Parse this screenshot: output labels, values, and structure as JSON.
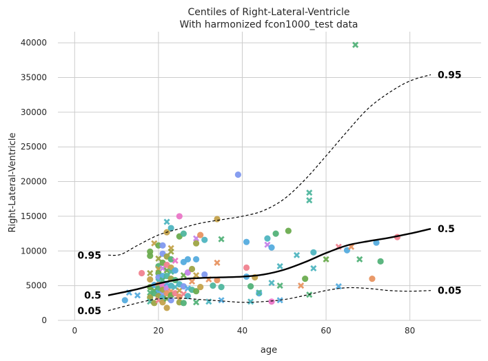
{
  "chart_data": {
    "type": "scatter",
    "title": "Centiles of Right-Lateral-Ventricle",
    "subtitle": "With harmonized fcon1000_test data",
    "xlabel": "age",
    "ylabel": "Right-Lateral-Ventricle",
    "xlim": [
      -4,
      97
    ],
    "ylim": [
      0,
      41600
    ],
    "xticks": [
      0,
      20,
      40,
      60,
      80
    ],
    "yticks": [
      0,
      5000,
      10000,
      15000,
      20000,
      25000,
      30000,
      35000,
      40000
    ],
    "grid": true,
    "centiles": [
      {
        "name": "0.95",
        "style": "dashed",
        "label_left": "0.95",
        "label_right": "0.95",
        "x": [
          8,
          11,
          15,
          20,
          25,
          30,
          35,
          40,
          45,
          50,
          55,
          60,
          65,
          70,
          75,
          80,
          85
        ],
        "y": [
          9400,
          9500,
          10800,
          12300,
          13200,
          14000,
          14500,
          15000,
          15800,
          17500,
          20300,
          23700,
          27200,
          30500,
          32800,
          34500,
          35400
        ]
      },
      {
        "name": "0.5",
        "style": "solid",
        "label_left": "0.5",
        "label_right": "0.5",
        "x": [
          8,
          15,
          20,
          25,
          30,
          35,
          40,
          45,
          50,
          55,
          60,
          65,
          70,
          75,
          80,
          85
        ],
        "y": [
          3600,
          4500,
          5300,
          5900,
          6100,
          6200,
          6300,
          6600,
          7300,
          8400,
          9700,
          10800,
          11400,
          11900,
          12500,
          13200
        ]
      },
      {
        "name": "0.05",
        "style": "dashed",
        "label_left": "0.05",
        "label_right": "0.05",
        "x": [
          8,
          15,
          20,
          25,
          30,
          35,
          40,
          45,
          50,
          55,
          60,
          65,
          70,
          75,
          80,
          85
        ],
        "y": [
          1400,
          2500,
          3100,
          3200,
          3000,
          2800,
          2600,
          2700,
          3000,
          3600,
          4300,
          4700,
          4600,
          4300,
          4200,
          4300
        ]
      }
    ],
    "marker_colors": [
      "#f0828f",
      "#e89361",
      "#c4a24b",
      "#9ea444",
      "#6cac4f",
      "#53b279",
      "#4fb69e",
      "#4fb5c0",
      "#55acde",
      "#8199ef",
      "#c583e9",
      "#ea76c7"
    ],
    "points": [
      {
        "x": 12,
        "y": 2900,
        "m": "o",
        "c": 8
      },
      {
        "x": 13,
        "y": 4000,
        "m": "x",
        "c": 8
      },
      {
        "x": 15,
        "y": 3600,
        "m": "x",
        "c": 8
      },
      {
        "x": 16,
        "y": 6800,
        "m": "o",
        "c": 0
      },
      {
        "x": 18,
        "y": 9300,
        "m": "o",
        "c": 4
      },
      {
        "x": 18,
        "y": 9900,
        "m": "o",
        "c": 4
      },
      {
        "x": 18,
        "y": 6800,
        "m": "x",
        "c": 3
      },
      {
        "x": 18,
        "y": 5900,
        "m": "o",
        "c": 2
      },
      {
        "x": 18,
        "y": 4800,
        "m": "o",
        "c": 4
      },
      {
        "x": 18,
        "y": 4000,
        "m": "x",
        "c": 5
      },
      {
        "x": 18,
        "y": 3300,
        "m": "o",
        "c": 3
      },
      {
        "x": 18,
        "y": 2700,
        "m": "x",
        "c": 6
      },
      {
        "x": 19,
        "y": 11100,
        "m": "x",
        "c": 2
      },
      {
        "x": 19,
        "y": 5100,
        "m": "o",
        "c": 8
      },
      {
        "x": 19,
        "y": 4300,
        "m": "x",
        "c": 4
      },
      {
        "x": 19,
        "y": 3900,
        "m": "o",
        "c": 5
      },
      {
        "x": 19,
        "y": 2500,
        "m": "o",
        "c": 3
      },
      {
        "x": 20,
        "y": 10800,
        "m": "o",
        "c": 4
      },
      {
        "x": 20,
        "y": 8900,
        "m": "x",
        "c": 3
      },
      {
        "x": 20,
        "y": 7800,
        "m": "o",
        "c": 5
      },
      {
        "x": 20,
        "y": 7400,
        "m": "x",
        "c": 2
      },
      {
        "x": 20,
        "y": 6800,
        "m": "o",
        "c": 4
      },
      {
        "x": 20,
        "y": 6200,
        "m": "o",
        "c": 9
      },
      {
        "x": 20,
        "y": 5600,
        "m": "x",
        "c": 7
      },
      {
        "x": 20,
        "y": 5100,
        "m": "o",
        "c": 1
      },
      {
        "x": 20,
        "y": 4600,
        "m": "o",
        "c": 5
      },
      {
        "x": 20,
        "y": 4000,
        "m": "x",
        "c": 8
      },
      {
        "x": 20,
        "y": 3500,
        "m": "o",
        "c": 3
      },
      {
        "x": 20,
        "y": 2900,
        "m": "x",
        "c": 0
      },
      {
        "x": 21,
        "y": 10800,
        "m": "o",
        "c": 9
      },
      {
        "x": 21,
        "y": 9600,
        "m": "o",
        "c": 9
      },
      {
        "x": 21,
        "y": 8300,
        "m": "o",
        "c": 4
      },
      {
        "x": 21,
        "y": 7500,
        "m": "x",
        "c": 10
      },
      {
        "x": 21,
        "y": 6400,
        "m": "o",
        "c": 8
      },
      {
        "x": 21,
        "y": 5800,
        "m": "x",
        "c": 5
      },
      {
        "x": 21,
        "y": 5000,
        "m": "o",
        "c": 11
      },
      {
        "x": 21,
        "y": 4400,
        "m": "o",
        "c": 3
      },
      {
        "x": 21,
        "y": 3700,
        "m": "x",
        "c": 9
      },
      {
        "x": 21,
        "y": 3200,
        "m": "o",
        "c": 7
      },
      {
        "x": 21,
        "y": 2600,
        "m": "o",
        "c": 2
      },
      {
        "x": 22,
        "y": 14200,
        "m": "x",
        "c": 7
      },
      {
        "x": 22,
        "y": 12700,
        "m": "o",
        "c": 2
      },
      {
        "x": 22,
        "y": 9200,
        "m": "o",
        "c": 3
      },
      {
        "x": 22,
        "y": 8000,
        "m": "o",
        "c": 0
      },
      {
        "x": 22,
        "y": 7200,
        "m": "x",
        "c": 4
      },
      {
        "x": 22,
        "y": 6400,
        "m": "o",
        "c": 6
      },
      {
        "x": 22,
        "y": 5300,
        "m": "x",
        "c": 8
      },
      {
        "x": 22,
        "y": 4600,
        "m": "o",
        "c": 10
      },
      {
        "x": 22,
        "y": 3900,
        "m": "o",
        "c": 1
      },
      {
        "x": 22,
        "y": 3100,
        "m": "x",
        "c": 4
      },
      {
        "x": 22,
        "y": 1800,
        "m": "o",
        "c": 2
      },
      {
        "x": 23,
        "y": 13300,
        "m": "o",
        "c": 7
      },
      {
        "x": 23,
        "y": 10400,
        "m": "x",
        "c": 2
      },
      {
        "x": 23,
        "y": 9900,
        "m": "x",
        "c": 3
      },
      {
        "x": 23,
        "y": 8800,
        "m": "o",
        "c": 5
      },
      {
        "x": 23,
        "y": 7600,
        "m": "o",
        "c": 2
      },
      {
        "x": 23,
        "y": 7000,
        "m": "x",
        "c": 6
      },
      {
        "x": 23,
        "y": 6000,
        "m": "o",
        "c": 3
      },
      {
        "x": 23,
        "y": 5000,
        "m": "o",
        "c": 7
      },
      {
        "x": 23,
        "y": 4200,
        "m": "x",
        "c": 1
      },
      {
        "x": 23,
        "y": 3600,
        "m": "o",
        "c": 4
      },
      {
        "x": 23,
        "y": 2900,
        "m": "o",
        "c": 9
      },
      {
        "x": 24,
        "y": 8600,
        "m": "x",
        "c": 11
      },
      {
        "x": 24,
        "y": 7200,
        "m": "o",
        "c": 8
      },
      {
        "x": 24,
        "y": 5800,
        "m": "o",
        "c": 5
      },
      {
        "x": 24,
        "y": 4800,
        "m": "x",
        "c": 7
      },
      {
        "x": 24,
        "y": 3900,
        "m": "o",
        "c": 0
      },
      {
        "x": 25,
        "y": 15000,
        "m": "o",
        "c": 11
      },
      {
        "x": 25,
        "y": 12100,
        "m": "o",
        "c": 4
      },
      {
        "x": 25,
        "y": 5200,
        "m": "o",
        "c": 7
      },
      {
        "x": 25,
        "y": 4300,
        "m": "x",
        "c": 2
      },
      {
        "x": 25,
        "y": 3400,
        "m": "o",
        "c": 1
      },
      {
        "x": 25,
        "y": 2600,
        "m": "o",
        "c": 3
      },
      {
        "x": 26,
        "y": 12500,
        "m": "o",
        "c": 6
      },
      {
        "x": 26,
        "y": 8400,
        "m": "o",
        "c": 8
      },
      {
        "x": 26,
        "y": 6500,
        "m": "x",
        "c": 4
      },
      {
        "x": 26,
        "y": 4900,
        "m": "o",
        "c": 9
      },
      {
        "x": 26,
        "y": 3800,
        "m": "x",
        "c": 0
      },
      {
        "x": 26,
        "y": 2500,
        "m": "o",
        "c": 5
      },
      {
        "x": 27,
        "y": 8800,
        "m": "o",
        "c": 8
      },
      {
        "x": 27,
        "y": 6900,
        "m": "o",
        "c": 10
      },
      {
        "x": 27,
        "y": 4600,
        "m": "x",
        "c": 8
      },
      {
        "x": 27,
        "y": 3500,
        "m": "o",
        "c": 7
      },
      {
        "x": 28,
        "y": 7400,
        "m": "o",
        "c": 3
      },
      {
        "x": 28,
        "y": 5600,
        "m": "x",
        "c": 1
      },
      {
        "x": 28,
        "y": 4400,
        "m": "o",
        "c": 6
      },
      {
        "x": 29,
        "y": 11800,
        "m": "x",
        "c": 10
      },
      {
        "x": 29,
        "y": 11100,
        "m": "o",
        "c": 3
      },
      {
        "x": 29,
        "y": 8800,
        "m": "o",
        "c": 8
      },
      {
        "x": 29,
        "y": 6500,
        "m": "x",
        "c": 2
      },
      {
        "x": 29,
        "y": 4200,
        "m": "o",
        "c": 4
      },
      {
        "x": 29,
        "y": 2600,
        "m": "x",
        "c": 5
      },
      {
        "x": 30,
        "y": 12300,
        "m": "o",
        "c": 1
      },
      {
        "x": 30,
        "y": 4800,
        "m": "o",
        "c": 2
      },
      {
        "x": 31,
        "y": 11600,
        "m": "o",
        "c": 7
      },
      {
        "x": 31,
        "y": 6600,
        "m": "o",
        "c": 9
      },
      {
        "x": 32,
        "y": 5900,
        "m": "x",
        "c": 1
      },
      {
        "x": 32,
        "y": 2700,
        "m": "x",
        "c": 7
      },
      {
        "x": 33,
        "y": 5000,
        "m": "o",
        "c": 6
      },
      {
        "x": 34,
        "y": 14600,
        "m": "o",
        "c": 2
      },
      {
        "x": 34,
        "y": 8300,
        "m": "x",
        "c": 1
      },
      {
        "x": 34,
        "y": 5800,
        "m": "o",
        "c": 1
      },
      {
        "x": 35,
        "y": 11700,
        "m": "x",
        "c": 5
      },
      {
        "x": 35,
        "y": 4800,
        "m": "o",
        "c": 6
      },
      {
        "x": 35,
        "y": 2900,
        "m": "x",
        "c": 8
      },
      {
        "x": 39,
        "y": 21000,
        "m": "o",
        "c": 9
      },
      {
        "x": 41,
        "y": 11300,
        "m": "o",
        "c": 8
      },
      {
        "x": 41,
        "y": 7600,
        "m": "o",
        "c": 0
      },
      {
        "x": 41,
        "y": 6300,
        "m": "o",
        "c": 8
      },
      {
        "x": 42,
        "y": 4900,
        "m": "o",
        "c": 5
      },
      {
        "x": 42,
        "y": 2700,
        "m": "x",
        "c": 7
      },
      {
        "x": 43,
        "y": 6200,
        "m": "o",
        "c": 2
      },
      {
        "x": 44,
        "y": 3900,
        "m": "o",
        "c": 8
      },
      {
        "x": 44,
        "y": 4000,
        "m": "x",
        "c": 6
      },
      {
        "x": 46,
        "y": 11800,
        "m": "o",
        "c": 7
      },
      {
        "x": 46,
        "y": 10900,
        "m": "x",
        "c": 10
      },
      {
        "x": 47,
        "y": 10500,
        "m": "o",
        "c": 8
      },
      {
        "x": 47,
        "y": 5400,
        "m": "x",
        "c": 7
      },
      {
        "x": 47,
        "y": 2700,
        "m": "o",
        "c": 11
      },
      {
        "x": 48,
        "y": 12500,
        "m": "o",
        "c": 5
      },
      {
        "x": 49,
        "y": 7800,
        "m": "x",
        "c": 7
      },
      {
        "x": 49,
        "y": 5000,
        "m": "x",
        "c": 5
      },
      {
        "x": 49,
        "y": 2900,
        "m": "x",
        "c": 8
      },
      {
        "x": 51,
        "y": 12900,
        "m": "o",
        "c": 4
      },
      {
        "x": 53,
        "y": 9400,
        "m": "x",
        "c": 7
      },
      {
        "x": 54,
        "y": 5000,
        "m": "x",
        "c": 1
      },
      {
        "x": 55,
        "y": 6000,
        "m": "o",
        "c": 4
      },
      {
        "x": 56,
        "y": 18400,
        "m": "x",
        "c": 6
      },
      {
        "x": 56,
        "y": 17300,
        "m": "x",
        "c": 6
      },
      {
        "x": 56,
        "y": 3700,
        "m": "x",
        "c": 5
      },
      {
        "x": 57,
        "y": 9800,
        "m": "o",
        "c": 7
      },
      {
        "x": 57,
        "y": 7500,
        "m": "x",
        "c": 7
      },
      {
        "x": 60,
        "y": 8800,
        "m": "x",
        "c": 4
      },
      {
        "x": 63,
        "y": 10600,
        "m": "x",
        "c": 0
      },
      {
        "x": 63,
        "y": 4900,
        "m": "x",
        "c": 8
      },
      {
        "x": 65,
        "y": 10100,
        "m": "o",
        "c": 8
      },
      {
        "x": 66,
        "y": 10600,
        "m": "x",
        "c": 1
      },
      {
        "x": 67,
        "y": 39700,
        "m": "x",
        "c": 5
      },
      {
        "x": 68,
        "y": 8800,
        "m": "x",
        "c": 5
      },
      {
        "x": 71,
        "y": 6000,
        "m": "o",
        "c": 1
      },
      {
        "x": 72,
        "y": 11200,
        "m": "o",
        "c": 8
      },
      {
        "x": 73,
        "y": 8500,
        "m": "o",
        "c": 5
      },
      {
        "x": 77,
        "y": 12000,
        "m": "o",
        "c": 0
      }
    ]
  }
}
